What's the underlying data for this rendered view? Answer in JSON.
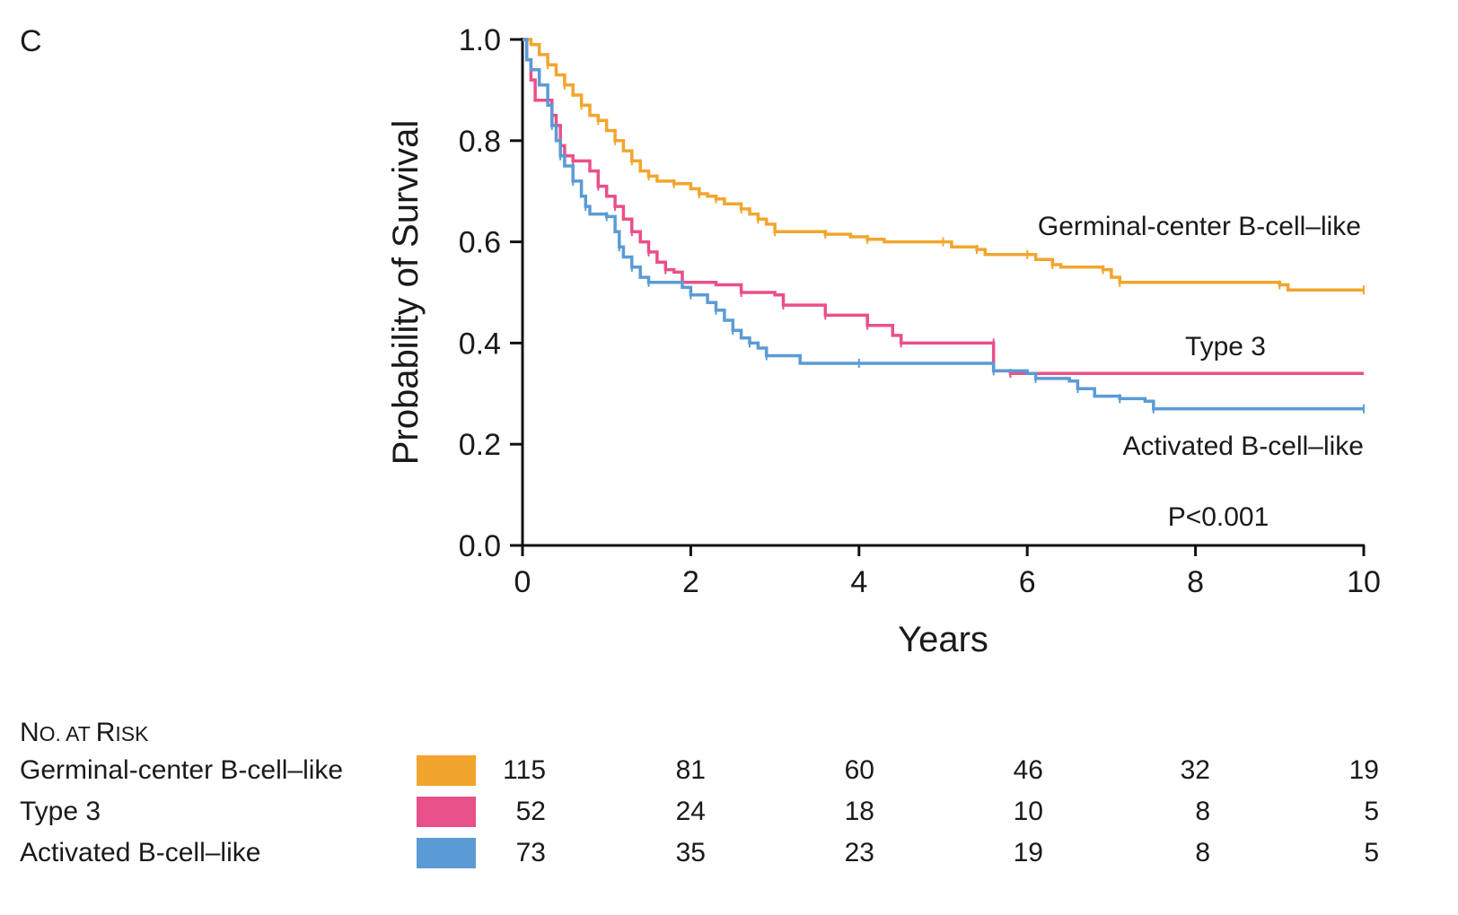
{
  "panel_label": "C",
  "chart_data": {
    "type": "line",
    "xlabel": "Years",
    "ylabel": "Probability of Survival",
    "xlim": [
      0,
      10
    ],
    "ylim": [
      0,
      1.0
    ],
    "xticks": [
      "0",
      "2",
      "4",
      "6",
      "8",
      "10"
    ],
    "yticks": [
      "0.0",
      "0.2",
      "0.4",
      "0.6",
      "0.8",
      "1.0"
    ],
    "annotation": "P<0.001",
    "series": [
      {
        "name": "Germinal-center B-cell–like",
        "color": "#F2A52E",
        "points": [
          [
            0,
            1.0
          ],
          [
            0.1,
            0.99
          ],
          [
            0.2,
            0.97
          ],
          [
            0.3,
            0.95
          ],
          [
            0.4,
            0.93
          ],
          [
            0.5,
            0.91
          ],
          [
            0.6,
            0.89
          ],
          [
            0.7,
            0.87
          ],
          [
            0.8,
            0.85
          ],
          [
            0.9,
            0.84
          ],
          [
            1.0,
            0.82
          ],
          [
            1.1,
            0.8
          ],
          [
            1.2,
            0.78
          ],
          [
            1.3,
            0.76
          ],
          [
            1.4,
            0.74
          ],
          [
            1.5,
            0.73
          ],
          [
            1.6,
            0.72
          ],
          [
            1.8,
            0.715
          ],
          [
            2.0,
            0.705
          ],
          [
            2.1,
            0.695
          ],
          [
            2.2,
            0.69
          ],
          [
            2.3,
            0.685
          ],
          [
            2.4,
            0.675
          ],
          [
            2.6,
            0.665
          ],
          [
            2.7,
            0.655
          ],
          [
            2.8,
            0.645
          ],
          [
            2.9,
            0.635
          ],
          [
            3.0,
            0.62
          ],
          [
            3.4,
            0.62
          ],
          [
            3.6,
            0.615
          ],
          [
            3.9,
            0.61
          ],
          [
            4.1,
            0.605
          ],
          [
            4.3,
            0.6
          ],
          [
            5.0,
            0.6
          ],
          [
            5.1,
            0.59
          ],
          [
            5.4,
            0.585
          ],
          [
            5.5,
            0.575
          ],
          [
            6.0,
            0.575
          ],
          [
            6.1,
            0.565
          ],
          [
            6.3,
            0.555
          ],
          [
            6.4,
            0.55
          ],
          [
            6.9,
            0.545
          ],
          [
            7.0,
            0.53
          ],
          [
            7.1,
            0.52
          ],
          [
            8.0,
            0.52
          ],
          [
            9.0,
            0.515
          ],
          [
            9.1,
            0.505
          ],
          [
            10.0,
            0.505
          ]
        ]
      },
      {
        "name": "Type 3",
        "color": "#E8508A",
        "points": [
          [
            0,
            1.0
          ],
          [
            0.05,
            0.96
          ],
          [
            0.1,
            0.92
          ],
          [
            0.15,
            0.88
          ],
          [
            0.3,
            0.88
          ],
          [
            0.35,
            0.85
          ],
          [
            0.4,
            0.83
          ],
          [
            0.45,
            0.79
          ],
          [
            0.5,
            0.77
          ],
          [
            0.6,
            0.76
          ],
          [
            0.8,
            0.74
          ],
          [
            0.9,
            0.71
          ],
          [
            1.0,
            0.69
          ],
          [
            1.1,
            0.67
          ],
          [
            1.2,
            0.645
          ],
          [
            1.3,
            0.62
          ],
          [
            1.4,
            0.6
          ],
          [
            1.5,
            0.58
          ],
          [
            1.6,
            0.56
          ],
          [
            1.7,
            0.545
          ],
          [
            1.8,
            0.54
          ],
          [
            1.9,
            0.52
          ],
          [
            2.3,
            0.515
          ],
          [
            2.6,
            0.5
          ],
          [
            3.0,
            0.495
          ],
          [
            3.1,
            0.475
          ],
          [
            3.5,
            0.475
          ],
          [
            3.6,
            0.455
          ],
          [
            4.0,
            0.455
          ],
          [
            4.1,
            0.435
          ],
          [
            4.4,
            0.415
          ],
          [
            4.5,
            0.4
          ],
          [
            5.0,
            0.4
          ],
          [
            5.6,
            0.4
          ],
          [
            5.6,
            0.345
          ],
          [
            5.8,
            0.34
          ],
          [
            10.0,
            0.34
          ]
        ]
      },
      {
        "name": "Activated B-cell–like",
        "color": "#5B9BD5",
        "points": [
          [
            0,
            1.0
          ],
          [
            0.05,
            0.96
          ],
          [
            0.1,
            0.94
          ],
          [
            0.2,
            0.91
          ],
          [
            0.3,
            0.87
          ],
          [
            0.35,
            0.83
          ],
          [
            0.4,
            0.8
          ],
          [
            0.45,
            0.77
          ],
          [
            0.5,
            0.75
          ],
          [
            0.6,
            0.72
          ],
          [
            0.7,
            0.69
          ],
          [
            0.75,
            0.67
          ],
          [
            0.8,
            0.655
          ],
          [
            1.0,
            0.65
          ],
          [
            1.1,
            0.62
          ],
          [
            1.15,
            0.59
          ],
          [
            1.2,
            0.57
          ],
          [
            1.3,
            0.55
          ],
          [
            1.4,
            0.53
          ],
          [
            1.5,
            0.52
          ],
          [
            1.9,
            0.51
          ],
          [
            2.0,
            0.495
          ],
          [
            2.2,
            0.48
          ],
          [
            2.3,
            0.465
          ],
          [
            2.4,
            0.445
          ],
          [
            2.5,
            0.425
          ],
          [
            2.6,
            0.41
          ],
          [
            2.7,
            0.4
          ],
          [
            2.8,
            0.39
          ],
          [
            2.9,
            0.375
          ],
          [
            3.3,
            0.36
          ],
          [
            4.0,
            0.36
          ],
          [
            5.6,
            0.36
          ],
          [
            5.6,
            0.345
          ],
          [
            6.0,
            0.34
          ],
          [
            6.1,
            0.33
          ],
          [
            6.5,
            0.325
          ],
          [
            6.6,
            0.31
          ],
          [
            6.8,
            0.295
          ],
          [
            7.1,
            0.29
          ],
          [
            7.4,
            0.285
          ],
          [
            7.5,
            0.27
          ],
          [
            8.0,
            0.27
          ],
          [
            10.0,
            0.27
          ]
        ]
      }
    ]
  },
  "risk_table": {
    "title_first": "N",
    "title_rest": "O. AT ",
    "title_R": "R",
    "title_isk": "ISK",
    "rows": [
      {
        "name": "Germinal-center B-cell–like",
        "color": "#F2A52E",
        "values": [
          "115",
          "81",
          "60",
          "46",
          "32",
          "19"
        ]
      },
      {
        "name": "Type 3",
        "color": "#E8508A",
        "values": [
          "52",
          "24",
          "18",
          "10",
          "8",
          "5"
        ]
      },
      {
        "name": "Activated B-cell–like",
        "color": "#5B9BD5",
        "values": [
          "73",
          "35",
          "23",
          "19",
          "8",
          "5"
        ]
      }
    ]
  }
}
